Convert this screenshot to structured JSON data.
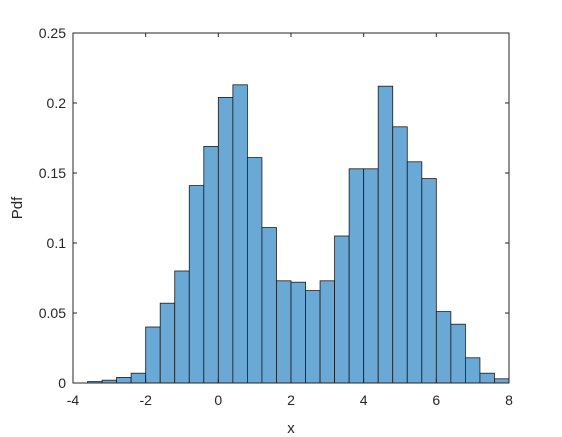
{
  "chart_data": {
    "type": "bar",
    "title": "",
    "xlabel": "x",
    "ylabel": "Pdf",
    "xlim": [
      -4,
      8
    ],
    "ylim": [
      0,
      0.25
    ],
    "xticks": [
      -4,
      -2,
      0,
      2,
      4,
      6,
      8
    ],
    "xtick_labels": [
      "-4",
      "-2",
      "0",
      "2",
      "4",
      "6",
      "8"
    ],
    "yticks": [
      0,
      0.05,
      0.1,
      0.15,
      0.2,
      0.25
    ],
    "ytick_labels": [
      "0",
      "0.05",
      "0.1",
      "0.15",
      "0.2",
      "0.25"
    ],
    "grid": false,
    "box": true,
    "bar_color": "#6aa8d6",
    "edge_color": "#1a1a1a",
    "bins": [
      {
        "x0": -3.6,
        "x1": -3.2,
        "value": 0.001
      },
      {
        "x0": -3.2,
        "x1": -2.8,
        "value": 0.002
      },
      {
        "x0": -2.8,
        "x1": -2.4,
        "value": 0.004
      },
      {
        "x0": -2.4,
        "x1": -2.0,
        "value": 0.007
      },
      {
        "x0": -2.0,
        "x1": -1.6,
        "value": 0.04
      },
      {
        "x0": -1.6,
        "x1": -1.2,
        "value": 0.057
      },
      {
        "x0": -1.2,
        "x1": -0.8,
        "value": 0.08
      },
      {
        "x0": -0.8,
        "x1": -0.4,
        "value": 0.141
      },
      {
        "x0": -0.4,
        "x1": 0.0,
        "value": 0.169
      },
      {
        "x0": 0.0,
        "x1": 0.4,
        "value": 0.204
      },
      {
        "x0": 0.4,
        "x1": 0.8,
        "value": 0.213
      },
      {
        "x0": 0.8,
        "x1": 1.2,
        "value": 0.161
      },
      {
        "x0": 1.2,
        "x1": 1.6,
        "value": 0.111
      },
      {
        "x0": 1.6,
        "x1": 2.0,
        "value": 0.073
      },
      {
        "x0": 2.0,
        "x1": 2.4,
        "value": 0.072
      },
      {
        "x0": 2.4,
        "x1": 2.8,
        "value": 0.066
      },
      {
        "x0": 2.8,
        "x1": 3.2,
        "value": 0.073
      },
      {
        "x0": 3.2,
        "x1": 3.6,
        "value": 0.105
      },
      {
        "x0": 3.6,
        "x1": 4.0,
        "value": 0.153
      },
      {
        "x0": 4.0,
        "x1": 4.4,
        "value": 0.153
      },
      {
        "x0": 4.4,
        "x1": 4.8,
        "value": 0.212
      },
      {
        "x0": 4.8,
        "x1": 5.2,
        "value": 0.183
      },
      {
        "x0": 5.2,
        "x1": 5.6,
        "value": 0.158
      },
      {
        "x0": 5.6,
        "x1": 6.0,
        "value": 0.146
      },
      {
        "x0": 6.0,
        "x1": 6.4,
        "value": 0.051
      },
      {
        "x0": 6.4,
        "x1": 6.8,
        "value": 0.042
      },
      {
        "x0": 6.8,
        "x1": 7.2,
        "value": 0.018
      },
      {
        "x0": 7.2,
        "x1": 7.6,
        "value": 0.007
      },
      {
        "x0": 7.6,
        "x1": 8.0,
        "value": 0.003
      },
      {
        "x0": 8.0,
        "x1": 8.4,
        "value": 0.001
      }
    ]
  }
}
